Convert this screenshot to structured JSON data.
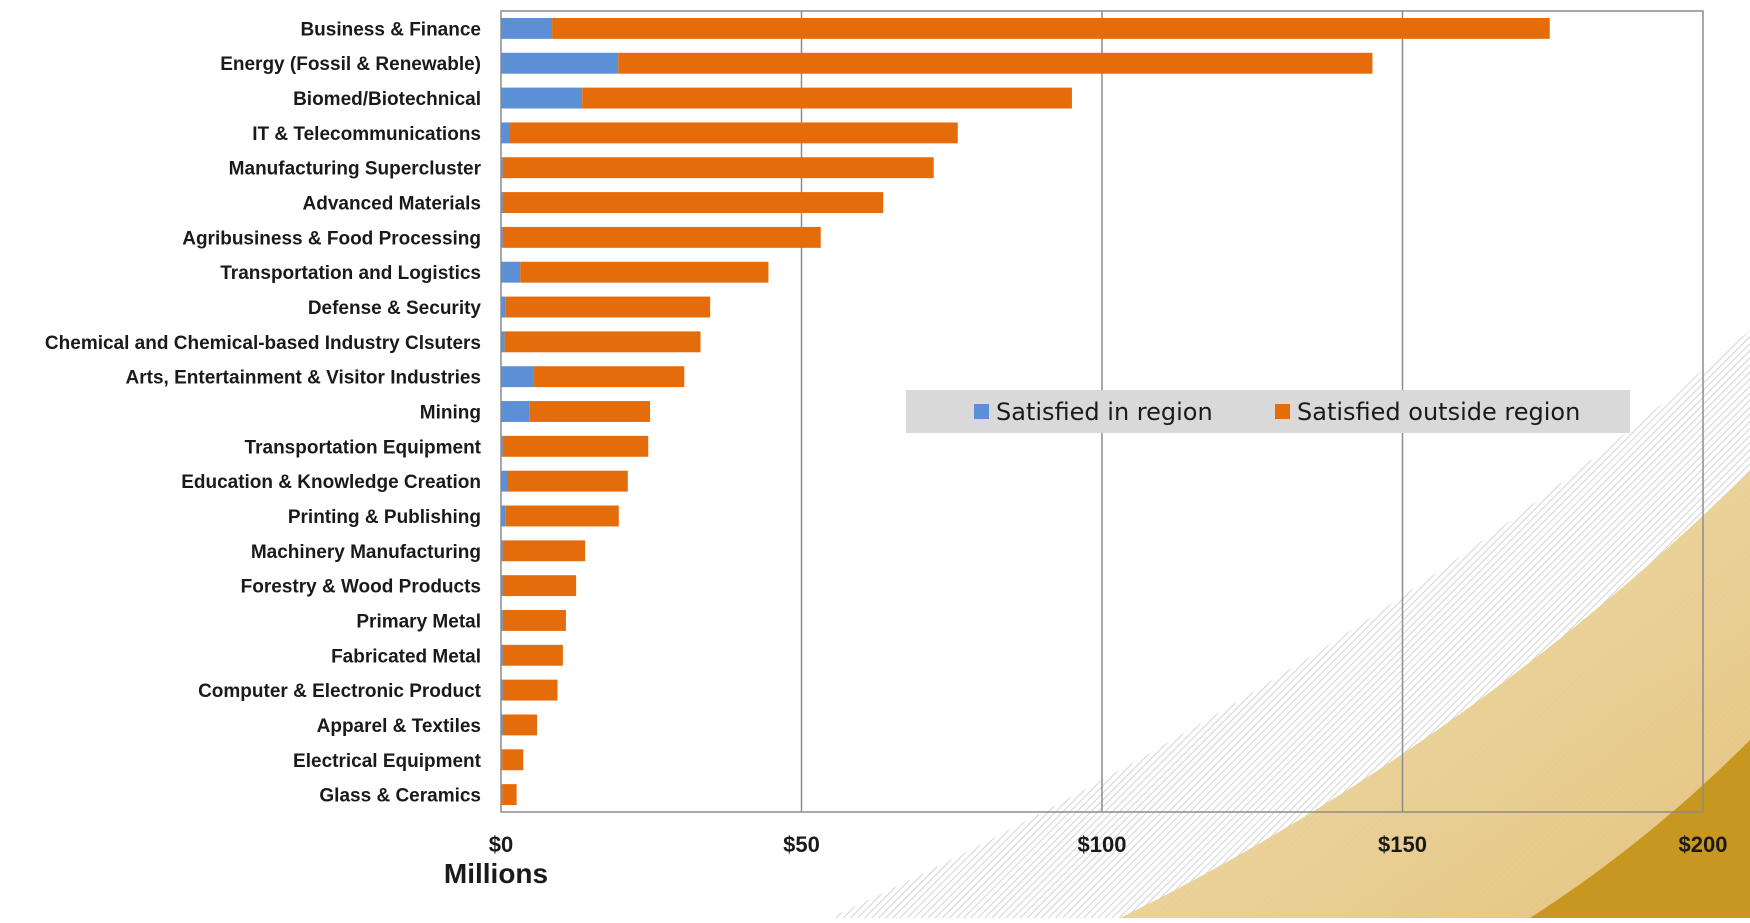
{
  "chart_data": {
    "type": "bar",
    "orientation": "horizontal",
    "stacked": true,
    "categories": [
      "Business & Finance",
      "Energy (Fossil & Renewable)",
      "Biomed/Biotechnical",
      "IT & Telecommunications",
      "Manufacturing Supercluster",
      "Advanced Materials",
      "Agribusiness & Food Processing",
      "Transportation and Logistics",
      "Defense & Security",
      "Chemical and Chemical-based Industry Clsuters",
      "Arts, Entertainment & Visitor Industries",
      "Mining",
      "Transportation Equipment",
      "Education & Knowledge Creation",
      "Printing & Publishing",
      "Machinery Manufacturing",
      "Forestry & Wood Products",
      "Primary Metal",
      "Fabricated Metal",
      "Computer & Electronic Product",
      "Apparel & Textiles",
      "Electrical Equipment",
      "Glass & Ceramics"
    ],
    "series": [
      {
        "name": "Satisfied in region",
        "color": "#5b8fd6",
        "values": [
          8.5,
          19.5,
          13.5,
          1.5,
          0.3,
          0.3,
          0.3,
          3.2,
          0.7,
          0.6,
          5.5,
          4.8,
          0.3,
          1.0,
          0.7,
          0.3,
          0.3,
          0.3,
          0.3,
          0.3,
          0.3,
          0.2,
          0.2
        ]
      },
      {
        "name": "Satisfied outside region",
        "color": "#e46c0a",
        "values": [
          166.0,
          125.5,
          81.5,
          74.5,
          71.7,
          63.3,
          52.9,
          41.3,
          34.1,
          32.6,
          25.0,
          20.0,
          24.2,
          20.1,
          18.9,
          13.7,
          12.2,
          10.5,
          10.0,
          9.1,
          5.7,
          3.5,
          2.4
        ]
      }
    ],
    "xlim": [
      0,
      200
    ],
    "x_ticks": [
      {
        "value": 0,
        "label": "$0"
      },
      {
        "value": 50,
        "label": "$50"
      },
      {
        "value": 100,
        "label": "$100"
      },
      {
        "value": 150,
        "label": "$150"
      },
      {
        "value": 200,
        "label": "$200"
      }
    ],
    "xlabel": "Millions",
    "grid": "vertical",
    "legend_placement": "center-right"
  },
  "decoration": {
    "swoosh_light": "#f1dfb0",
    "swoosh_dark": "#c8971f",
    "hatch_color": "#c9c9c9"
  }
}
